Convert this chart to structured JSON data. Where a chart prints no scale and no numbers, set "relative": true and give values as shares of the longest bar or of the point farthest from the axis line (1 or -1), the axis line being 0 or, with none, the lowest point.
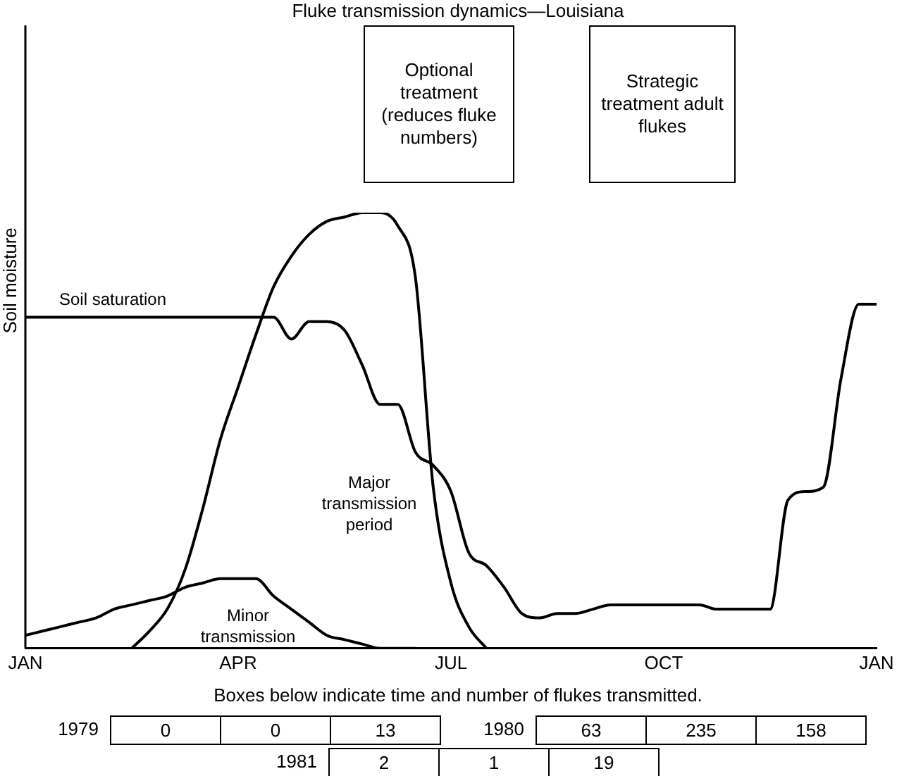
{
  "chart_data": {
    "type": "line",
    "title": "Fluke transmission dynamics—Louisiana",
    "ylabel": "Soil moisture",
    "relative": true,
    "categories": [
      "JAN",
      null,
      null,
      null,
      null,
      null,
      null,
      null,
      null,
      null,
      null,
      null,
      "APR",
      null,
      null,
      null,
      null,
      null,
      null,
      null,
      null,
      null,
      null,
      null,
      "JUL",
      null,
      null,
      null,
      null,
      null,
      null,
      null,
      null,
      null,
      null,
      null,
      "OCT",
      null,
      null,
      null,
      null,
      null,
      null,
      null,
      null,
      null,
      null,
      null,
      "JAN"
    ],
    "series": [
      {
        "name": "Soil saturation",
        "color": "#000000",
        "values": [
          0.76,
          0.76,
          0.76,
          0.76,
          0.76,
          0.76,
          0.76,
          0.76,
          0.76,
          0.76,
          0.76,
          0.76,
          0.76,
          0.76,
          0.76,
          0.71,
          0.75,
          0.75,
          0.73,
          0.65,
          0.56,
          0.56,
          0.45,
          0.42,
          0.36,
          0.22,
          0.19,
          0.14,
          0.08,
          0.07,
          0.08,
          0.08,
          0.09,
          0.1,
          0.1,
          0.1,
          0.1,
          0.1,
          0.1,
          0.09,
          0.09,
          0.09,
          0.09,
          0.34,
          0.36,
          0.37,
          0.62,
          0.79,
          0.79
        ]
      },
      {
        "name": "Major transmission period",
        "color": "#000000",
        "values": [
          null,
          null,
          null,
          null,
          null,
          null,
          0,
          0.04,
          0.09,
          0.18,
          0.32,
          0.48,
          0.6,
          0.72,
          0.83,
          0.9,
          0.95,
          0.98,
          0.99,
          1.0,
          1.0,
          0.97,
          0.85,
          0.37,
          0.15,
          0.05,
          0,
          null,
          null,
          null,
          null,
          null,
          null,
          null,
          null,
          null,
          null,
          null,
          null,
          null,
          null,
          null,
          null,
          null,
          null,
          null,
          null,
          null,
          null
        ]
      },
      {
        "name": "Minor transmission",
        "color": "#000000",
        "values": [
          0.03,
          0.04,
          0.05,
          0.06,
          0.07,
          0.09,
          0.1,
          0.11,
          0.12,
          0.14,
          0.15,
          0.16,
          0.16,
          0.16,
          0.12,
          0.09,
          0.06,
          0.03,
          0.02,
          0.01,
          0,
          0,
          0,
          null,
          null,
          null,
          null,
          null,
          null,
          null,
          null,
          null,
          null,
          null,
          null,
          null,
          null,
          null,
          null,
          null,
          null,
          null,
          null,
          null,
          null,
          null,
          null,
          null,
          null
        ]
      }
    ],
    "annotations": [
      "Optional treatment (reduces fluke numbers)",
      "Strategic treatment adult flukes",
      "Boxes below indicate time and number of flukes transmitted.",
      "1979",
      "0",
      "0",
      "13",
      "1980",
      "63",
      "235",
      "158",
      "1981",
      "2",
      "1",
      "19"
    ]
  }
}
